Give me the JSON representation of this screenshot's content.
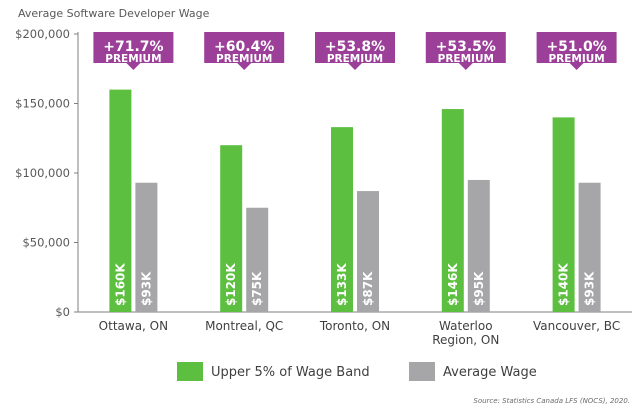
{
  "chart_data": {
    "type": "bar",
    "title": "Average Software Developer Wage",
    "categories": [
      "Ottawa, ON",
      "Montreal, QC",
      "Toronto, ON",
      "Waterloo Region, ON",
      "Vancouver, BC"
    ],
    "category_lines": [
      [
        "Ottawa, ON"
      ],
      [
        "Montreal, QC"
      ],
      [
        "Toronto, ON"
      ],
      [
        "Waterloo",
        "Region, ON"
      ],
      [
        "Vancouver, BC"
      ]
    ],
    "series": [
      {
        "name": "Upper 5% of Wage Band",
        "color": "#5cbf3f",
        "values": [
          160000,
          120000,
          133000,
          146000,
          140000
        ],
        "labels": [
          "$160K",
          "$120K",
          "$133K",
          "$146K",
          "$140K"
        ]
      },
      {
        "name": "Average Wage",
        "color": "#a6a6a8",
        "values": [
          93000,
          75000,
          87000,
          95000,
          93000
        ],
        "labels": [
          "$93K",
          "$75K",
          "$87K",
          "$95K",
          "$93K"
        ]
      }
    ],
    "premiums": [
      "+71.7%",
      "+60.4%",
      "+53.8%",
      "+53.5%",
      "+51.0%"
    ],
    "premium_word": "PREMIUM",
    "premium_color": "#9b3f98",
    "yticks": [
      0,
      50000,
      100000,
      150000,
      200000
    ],
    "ytick_labels": [
      "$0",
      "$50,000",
      "$100,000",
      "$150,000",
      "$200,000"
    ],
    "ylim": [
      0,
      200000
    ],
    "legend_position": "bottom",
    "grid": false,
    "source": "Source: Statistics Canada LFS (NOCS), 2020."
  }
}
